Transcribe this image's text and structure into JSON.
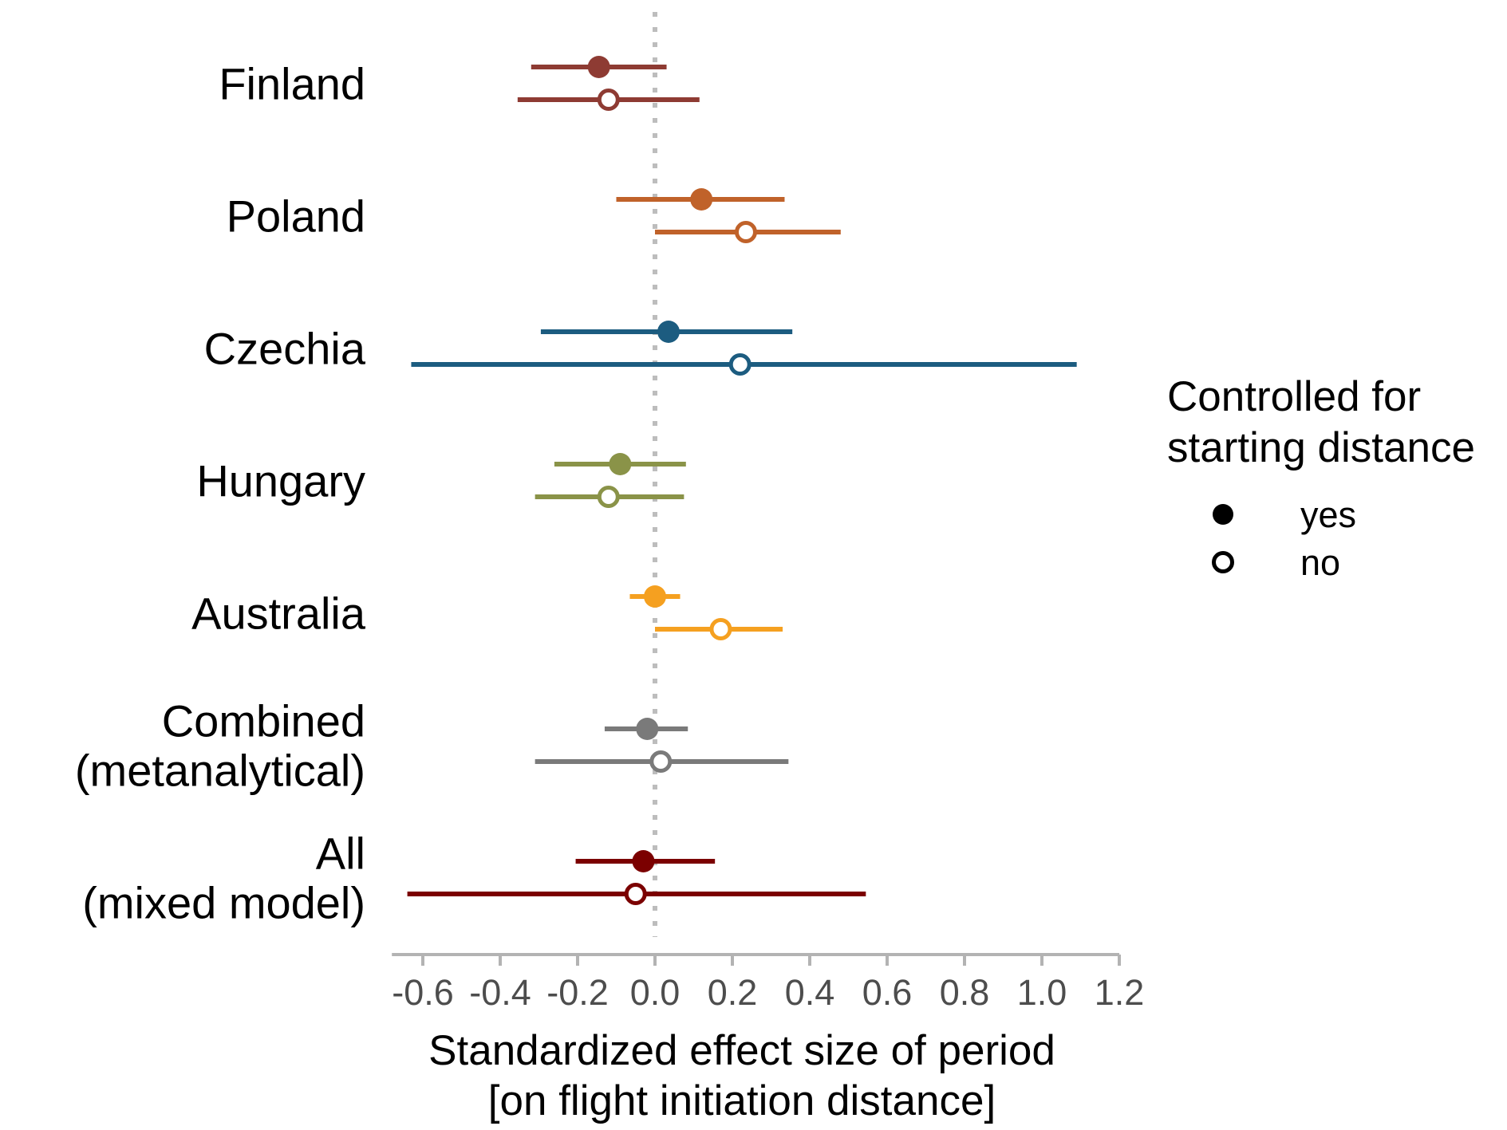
{
  "chart_data": {
    "type": "scatter",
    "subtype": "forest-plot",
    "xlabel": [
      "Standardized effect size of period",
      "[on flight initiation distance]"
    ],
    "xlim": [
      -0.68,
      1.2
    ],
    "xticks": [
      "-0.6",
      "-0.4",
      "-0.2",
      "0.0",
      "0.2",
      "0.4",
      "0.6",
      "0.8",
      "1.0",
      "1.2"
    ],
    "reference_line": {
      "x": 0,
      "style": "dotted",
      "color": "#bdbdbd"
    },
    "grid": false,
    "legend": {
      "title": [
        "Controlled for",
        "starting distance"
      ],
      "placement": "right",
      "entries": [
        {
          "label": "yes",
          "marker": "filled-circle"
        },
        {
          "label": "no",
          "marker": "open-circle"
        }
      ]
    },
    "groups": [
      {
        "label": [
          "Finland"
        ],
        "color": "#8e3b33",
        "yes": {
          "estimate": -0.145,
          "lower": -0.32,
          "upper": 0.03
        },
        "no": {
          "estimate": -0.12,
          "lower": -0.355,
          "upper": 0.115
        }
      },
      {
        "label": [
          "Poland"
        ],
        "color": "#c0622a",
        "yes": {
          "estimate": 0.12,
          "lower": -0.1,
          "upper": 0.335
        },
        "no": {
          "estimate": 0.235,
          "lower": 0.0,
          "upper": 0.48
        }
      },
      {
        "label": [
          "Czechia"
        ],
        "color": "#1c5c80",
        "yes": {
          "estimate": 0.035,
          "lower": -0.295,
          "upper": 0.355
        },
        "no": {
          "estimate": 0.22,
          "lower": -0.63,
          "upper": 1.09
        }
      },
      {
        "label": [
          "Hungary"
        ],
        "color": "#8a9348",
        "yes": {
          "estimate": -0.09,
          "lower": -0.26,
          "upper": 0.08
        },
        "no": {
          "estimate": -0.12,
          "lower": -0.31,
          "upper": 0.075
        }
      },
      {
        "label": [
          "Australia"
        ],
        "color": "#f5a020",
        "yes": {
          "estimate": 0.0,
          "lower": -0.065,
          "upper": 0.065
        },
        "no": {
          "estimate": 0.17,
          "lower": 0.0,
          "upper": 0.33
        }
      },
      {
        "label": [
          "Combined",
          "(metanalytical)"
        ],
        "color": "#7a7a7a",
        "yes": {
          "estimate": -0.02,
          "lower": -0.13,
          "upper": 0.085
        },
        "no": {
          "estimate": 0.015,
          "lower": -0.31,
          "upper": 0.345
        }
      },
      {
        "label": [
          "All",
          "(mixed model)"
        ],
        "color": "#7b0000",
        "yes": {
          "estimate": -0.03,
          "lower": -0.205,
          "upper": 0.155
        },
        "no": {
          "estimate": -0.05,
          "lower": -0.64,
          "upper": 0.545
        }
      }
    ]
  }
}
